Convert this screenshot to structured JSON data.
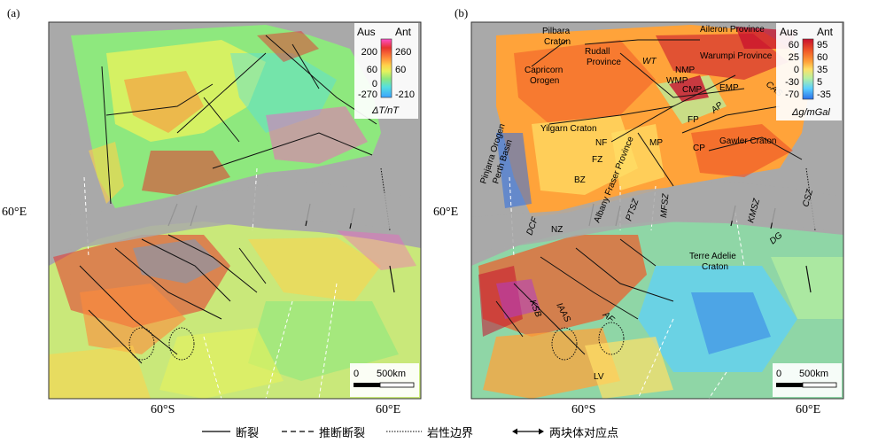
{
  "panels": [
    {
      "label": "(a)",
      "colorbar": {
        "left_header": "Aus",
        "right_header": "Ant",
        "left_ticks": [
          "200",
          "60",
          "0",
          "-270"
        ],
        "right_ticks": [
          "260",
          "60",
          "-210"
        ],
        "unit": "ΔT/nT"
      },
      "scalebar": {
        "start": "0",
        "end": "500km"
      },
      "lat_label": "60°E",
      "bottom_labels": [
        "60°S",
        "60°E"
      ]
    },
    {
      "label": "(b)",
      "colorbar": {
        "left_header": "Aus",
        "right_header": "Ant",
        "left_ticks": [
          "60",
          "25",
          "0",
          "-30",
          "-70"
        ],
        "right_ticks": [
          "95",
          "60",
          "35",
          "5",
          "-35"
        ],
        "unit": "Δg/mGal"
      },
      "scalebar": {
        "start": "0",
        "end": "500km"
      },
      "lat_label": "60°E",
      "bottom_labels": [
        "60°S",
        "60°E"
      ],
      "labels": {
        "pilbara": "Pilbara",
        "craton1": "Craton",
        "rudall": "Rudall",
        "province1": "Province",
        "aileron": "Aileron Province",
        "capricorn": "Capricorn",
        "orogen1": "Orogen",
        "wt": "WT",
        "warumpi": "Warumpi Province",
        "nmp": "NMP",
        "wmp": "WMP",
        "cmp": "CMP",
        "emp": "EMP",
        "cas": "CAS",
        "pinjarra": "Pinjarra Orogen",
        "perth": "Perth Basin",
        "yilgarn": "Yilgarn Craton",
        "fp": "FP",
        "ap": "AP",
        "nf": "NF",
        "mp": "MP",
        "cp": "CP",
        "gawler": "Gawler Craton",
        "fz": "FZ",
        "albany": "Albany Fraser Province",
        "bz": "BZ",
        "ptsz": "PTSZ",
        "mfsz": "MFSZ",
        "kmsz": "KMSZ",
        "csz": "CSZ",
        "dcf": "DCF",
        "nz": "NZ",
        "terre": "Terre Adelie",
        "craton2": "Craton",
        "dg": "DG",
        "ksb": "KSB",
        "iaas": "IAAS",
        "af": "AF",
        "lv": "LV"
      }
    }
  ],
  "legend": {
    "fault": "断裂",
    "inferred_fault": "推断断裂",
    "lith_boundary": "岩性边界",
    "conjugate_point": "两块体对应点"
  },
  "colors": {
    "ocean": "#a9a9a9",
    "mag_palette": [
      "#3ba3ff",
      "#55e0e0",
      "#8ee87e",
      "#e7f25c",
      "#ffd24a",
      "#ff8a3a",
      "#e8322e",
      "#ff4fc8"
    ],
    "grav_palette": [
      "#2b6fe8",
      "#5ad0ff",
      "#b7f0a0",
      "#ffe066",
      "#ffa33a",
      "#f05a28",
      "#c8102e"
    ]
  }
}
